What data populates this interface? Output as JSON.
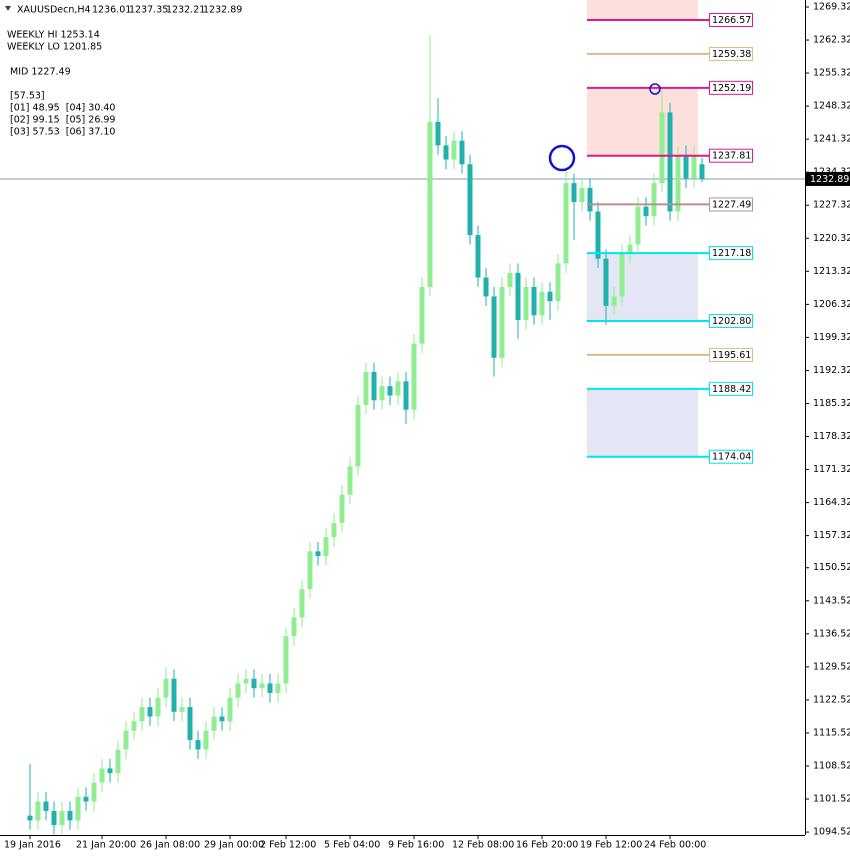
{
  "chart_data": {
    "type": "candlestick",
    "title": "XAUUSDecn,H4",
    "info_lines": [
      "WEEKLY HI 1253.14",
      "WEEKLY LO 1201.85",
      "MID 1227.49",
      "[57.53]",
      "[01] 48.95  [04] 30.40",
      "[02] 99.15  [05] 26.99",
      "[03] 57.53  [06] 37.10"
    ],
    "up_color": "#90ee90",
    "down_color": "#20b2aa",
    "price_line_color": "#7f9fb3",
    "ylim": [
      1093.9,
      1270.8
    ],
    "yticks": [
      1269.32,
      1262.32,
      1255.32,
      1248.32,
      1241.32,
      1234.32,
      1227.32,
      1220.32,
      1213.32,
      1206.32,
      1199.32,
      1192.32,
      1185.32,
      1178.32,
      1171.32,
      1164.32,
      1157.32,
      1150.52,
      1143.52,
      1136.52,
      1129.52,
      1122.52,
      1115.52,
      1108.52,
      1101.52,
      1094.52
    ],
    "xticks": [
      {
        "value": 0,
        "label": "19 Jan 2016"
      },
      {
        "value": 9,
        "label": "21 Jan 20:00"
      },
      {
        "value": 17,
        "label": "26 Jan 08:00"
      },
      {
        "value": 25,
        "label": "29 Jan 00:00"
      },
      {
        "value": 32,
        "label": "2 Feb 12:00"
      },
      {
        "value": 40,
        "label": "5 Feb 04:00"
      },
      {
        "value": 48,
        "label": "9 Feb 16:00"
      },
      {
        "value": 56,
        "label": "12 Feb 08:00"
      },
      {
        "value": 64,
        "label": "16 Feb 20:00"
      },
      {
        "value": 72,
        "label": "19 Feb 12:00"
      },
      {
        "value": 80,
        "label": "24 Feb 00:00"
      }
    ],
    "open": [
      1098,
      1097,
      1101,
      1099,
      1096,
      1099,
      1097,
      1102,
      1101,
      1105,
      1108,
      1107,
      1112,
      1116,
      1118,
      1121,
      1119,
      1123,
      1127,
      1120,
      1121,
      1114,
      1112,
      1116,
      1119,
      1118,
      1123,
      1126,
      1127,
      1125,
      1126,
      1124,
      1126,
      1136,
      1140,
      1146,
      1154,
      1153,
      1157,
      1160,
      1166,
      1172,
      1185,
      1192,
      1186,
      1189,
      1187,
      1190,
      1184,
      1198,
      1210,
      1245,
      1240,
      1237,
      1241,
      1236,
      1221,
      1212,
      1208,
      1195,
      1210,
      1213,
      1203,
      1210,
      1204,
      1209,
      1207,
      1215,
      1232,
      1228,
      1231,
      1226,
      1216,
      1206,
      1208,
      1217,
      1219,
      1227,
      1225,
      1232,
      1247,
      1226,
      1238,
      1233,
      1236.01
    ],
    "high": [
      1109,
      1103,
      1103,
      1101,
      1101,
      1101,
      1104,
      1104,
      1107,
      1110,
      1110,
      1114,
      1118,
      1120,
      1123,
      1123,
      1125,
      1129.5,
      1129,
      1123,
      1123,
      1116,
      1118,
      1121,
      1121,
      1125,
      1128,
      1129,
      1129,
      1128,
      1128,
      1128,
      1138,
      1142,
      1148,
      1156,
      1156,
      1159,
      1162,
      1168,
      1174,
      1187,
      1194,
      1194,
      1191,
      1191,
      1192,
      1192,
      1200,
      1212,
      1263.4,
      1250,
      1242,
      1243,
      1243,
      1238,
      1223,
      1214,
      1210,
      1212,
      1215,
      1215,
      1212,
      1212,
      1211,
      1211,
      1217,
      1235,
      1234,
      1233,
      1233,
      1228,
      1218,
      1210,
      1219,
      1221,
      1229,
      1229,
      1234,
      1252.5,
      1249,
      1240,
      1240,
      1240,
      1237.35
    ],
    "low": [
      1095,
      1095,
      1097,
      1094,
      1094,
      1095,
      1095,
      1099,
      1099,
      1103,
      1105,
      1105,
      1110,
      1114,
      1116,
      1117,
      1117,
      1121,
      1118,
      1118,
      1112,
      1110,
      1110,
      1114,
      1116,
      1116,
      1121,
      1124,
      1123,
      1123,
      1122,
      1122,
      1124,
      1134,
      1138,
      1144,
      1151,
      1151,
      1155,
      1158,
      1164,
      1170,
      1183,
      1184,
      1184,
      1185,
      1185,
      1181,
      1182,
      1196,
      1208,
      1238,
      1235,
      1235,
      1234,
      1219,
      1210,
      1206,
      1191,
      1193,
      1208,
      1199,
      1201,
      1202,
      1202,
      1203,
      1205,
      1213,
      1220,
      1226,
      1224,
      1214,
      1202,
      1204,
      1206,
      1215,
      1217,
      1223,
      1223,
      1230,
      1224,
      1224,
      1231,
      1231,
      1232.21
    ],
    "close": [
      1097,
      1101,
      1099,
      1096,
      1099,
      1097,
      1102,
      1101,
      1105,
      1108,
      1107,
      1112,
      1116,
      1118,
      1121,
      1119,
      1123,
      1127,
      1120,
      1121,
      1114,
      1112,
      1116,
      1119,
      1118,
      1123,
      1126,
      1127,
      1125,
      1126,
      1124,
      1126,
      1136,
      1140,
      1146,
      1154,
      1153,
      1157,
      1160,
      1166,
      1172,
      1185,
      1192,
      1186,
      1189,
      1187,
      1190,
      1184,
      1198,
      1210,
      1245,
      1240,
      1237,
      1241,
      1236,
      1221,
      1212,
      1208,
      1195,
      1210,
      1213,
      1203,
      1210,
      1204,
      1209,
      1207,
      1215,
      1232,
      1228,
      1231,
      1226,
      1216,
      1206,
      1208,
      1217,
      1219,
      1227,
      1225,
      1232,
      1247,
      1226,
      1238,
      1233,
      1238,
      1232.89
    ],
    "levels": [
      {
        "value": 1266.57,
        "color": "#e0198c"
      },
      {
        "value": 1259.38,
        "color": "#deb887"
      },
      {
        "value": 1252.19,
        "color": "#e0198c"
      },
      {
        "value": 1237.81,
        "color": "#e0198c"
      },
      {
        "value": 1227.49,
        "color": "#bc8f8f"
      },
      {
        "value": 1217.18,
        "color": "#00e5ee"
      },
      {
        "value": 1202.8,
        "label": "1202.80",
        "color": "#00e5ee"
      },
      {
        "value": 1195.61,
        "color": "#deb887"
      },
      {
        "value": 1188.42,
        "color": "#00e5ee"
      },
      {
        "value": 1174.04,
        "label": "1174.04",
        "color": "#00e5ee"
      }
    ],
    "zones": [
      {
        "low": 1266.57,
        "high": 1270.8,
        "color": "#fde0dc"
      },
      {
        "low": 1237.81,
        "high": 1252.19,
        "color": "#fde0dc"
      },
      {
        "low": 1202.8,
        "high": 1217.18,
        "color": "#e4e6f6"
      },
      {
        "low": 1174.04,
        "high": 1188.42,
        "color": "#e4e6f6"
      }
    ]
  }
}
